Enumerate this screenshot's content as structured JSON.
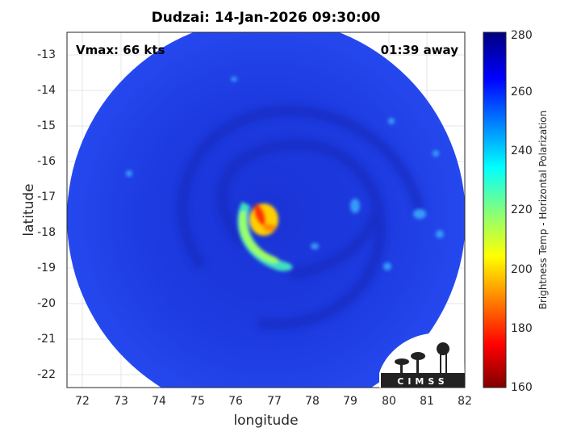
{
  "title": "Dudzai: 14-Jan-2026 09:30:00",
  "annotations": {
    "vmax": "Vmax: 66 kts",
    "time_away": "01:39 away"
  },
  "axes": {
    "xlabel": "longitude",
    "ylabel": "latitude",
    "xticks": [
      "72",
      "73",
      "74",
      "75",
      "76",
      "77",
      "78",
      "79",
      "80",
      "81",
      "82"
    ],
    "yticks": [
      "-13",
      "-14",
      "-15",
      "-16",
      "-17",
      "-18",
      "-19",
      "-20",
      "-21",
      "-22"
    ],
    "xlim": [
      71.6,
      82
    ],
    "ylim": [
      -22.35,
      -12.4
    ]
  },
  "colorbar": {
    "label": "Brightness Temp - Horizontal Polarization",
    "ticks": [
      "280",
      "260",
      "240",
      "220",
      "200",
      "180",
      "160"
    ],
    "range": [
      160,
      280
    ]
  },
  "logo": {
    "text": "CIMSS"
  },
  "colors": {
    "background_tb": "#1f3fe8",
    "eye_wall": "#ffcc00",
    "core": "#ff2a00"
  }
}
